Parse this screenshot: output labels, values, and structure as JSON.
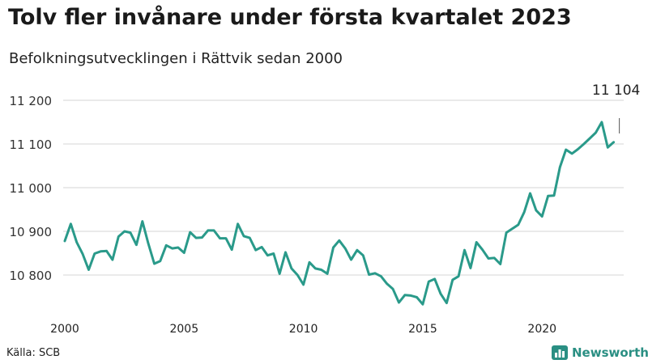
{
  "title": "Tolv fler invånare under första kvartalet 2023",
  "subtitle": "Befolkningsutvecklingen i Rättvik sedan 2000",
  "source": "Källa: SCB",
  "brand": "Newsworthy",
  "colors": {
    "line": "#2a9a8a",
    "grid": "#dddddd",
    "brand": "#2a8f83"
  },
  "chart_data": {
    "type": "line",
    "title": "Tolv fler invånare under första kvartalet 2023",
    "subtitle": "Befolkningsutvecklingen i Rättvik sedan 2000",
    "xlabel": "",
    "ylabel": "",
    "x_ticks": [
      2000,
      2005,
      2010,
      2015,
      2020
    ],
    "x_tick_labels": [
      "2000",
      "2005",
      "2010",
      "2015",
      "2020"
    ],
    "y_ticks": [
      10800,
      10900,
      11000,
      11100,
      11200
    ],
    "y_tick_labels": [
      "10 800",
      "10 900",
      "11 000",
      "11 100",
      "11 200"
    ],
    "xlim": [
      2000,
      2023.25
    ],
    "ylim": [
      10700,
      11200
    ],
    "grid": "horizontal",
    "annotation": {
      "label": "11 104",
      "x": 2023.0,
      "y": 11104
    },
    "series": [
      {
        "x": [
          2000.0,
          2000.25,
          2000.5,
          2000.75,
          2001.0,
          2001.25,
          2001.5,
          2001.75,
          2002.0,
          2002.25,
          2002.5,
          2002.75,
          2003.0,
          2003.25,
          2003.5,
          2003.75,
          2004.0,
          2004.25,
          2004.5,
          2004.75,
          2005.0,
          2005.25,
          2005.5,
          2005.75,
          2006.0,
          2006.25,
          2006.5,
          2006.75,
          2007.0,
          2007.25,
          2007.5,
          2007.75,
          2008.0,
          2008.25,
          2008.5,
          2008.75,
          2009.0,
          2009.25,
          2009.5,
          2009.75,
          2010.0,
          2010.25,
          2010.5,
          2010.75,
          2011.0,
          2011.25,
          2011.5,
          2011.75,
          2012.0,
          2012.25,
          2012.5,
          2012.75,
          2013.0,
          2013.25,
          2013.5,
          2013.75,
          2014.0,
          2014.25,
          2014.5,
          2014.75,
          2015.0,
          2015.25,
          2015.5,
          2015.75,
          2016.0,
          2016.25,
          2016.5,
          2016.75,
          2017.0,
          2017.25,
          2017.5,
          2017.75,
          2018.0,
          2018.25,
          2018.5,
          2018.75,
          2019.0,
          2019.25,
          2019.5,
          2019.75,
          2020.0,
          2020.25,
          2020.5,
          2020.75,
          2021.0,
          2021.25,
          2021.5,
          2021.75,
          2022.0,
          2022.25,
          2022.5,
          2022.75,
          2023.0
        ],
        "y": [
          10878,
          10917,
          10875,
          10848,
          10812,
          10849,
          10854,
          10855,
          10835,
          10888,
          10900,
          10897,
          10869,
          10923,
          10872,
          10826,
          10832,
          10868,
          10861,
          10863,
          10851,
          10898,
          10885,
          10886,
          10902,
          10902,
          10884,
          10884,
          10858,
          10917,
          10889,
          10885,
          10857,
          10864,
          10845,
          10849,
          10803,
          10852,
          10815,
          10800,
          10778,
          10829,
          10815,
          10812,
          10803,
          10863,
          10879,
          10861,
          10835,
          10857,
          10845,
          10801,
          10804,
          10797,
          10780,
          10768,
          10737,
          10754,
          10753,
          10749,
          10733,
          10785,
          10791,
          10757,
          10736,
          10789,
          10797,
          10857,
          10816,
          10875,
          10858,
          10838,
          10839,
          10825,
          10897,
          10906,
          10915,
          10944,
          10987,
          10948,
          10934,
          10981,
          10982,
          11047,
          11087,
          11078,
          11088,
          11100,
          11113,
          11126,
          11150,
          11092,
          11104
        ]
      }
    ]
  }
}
